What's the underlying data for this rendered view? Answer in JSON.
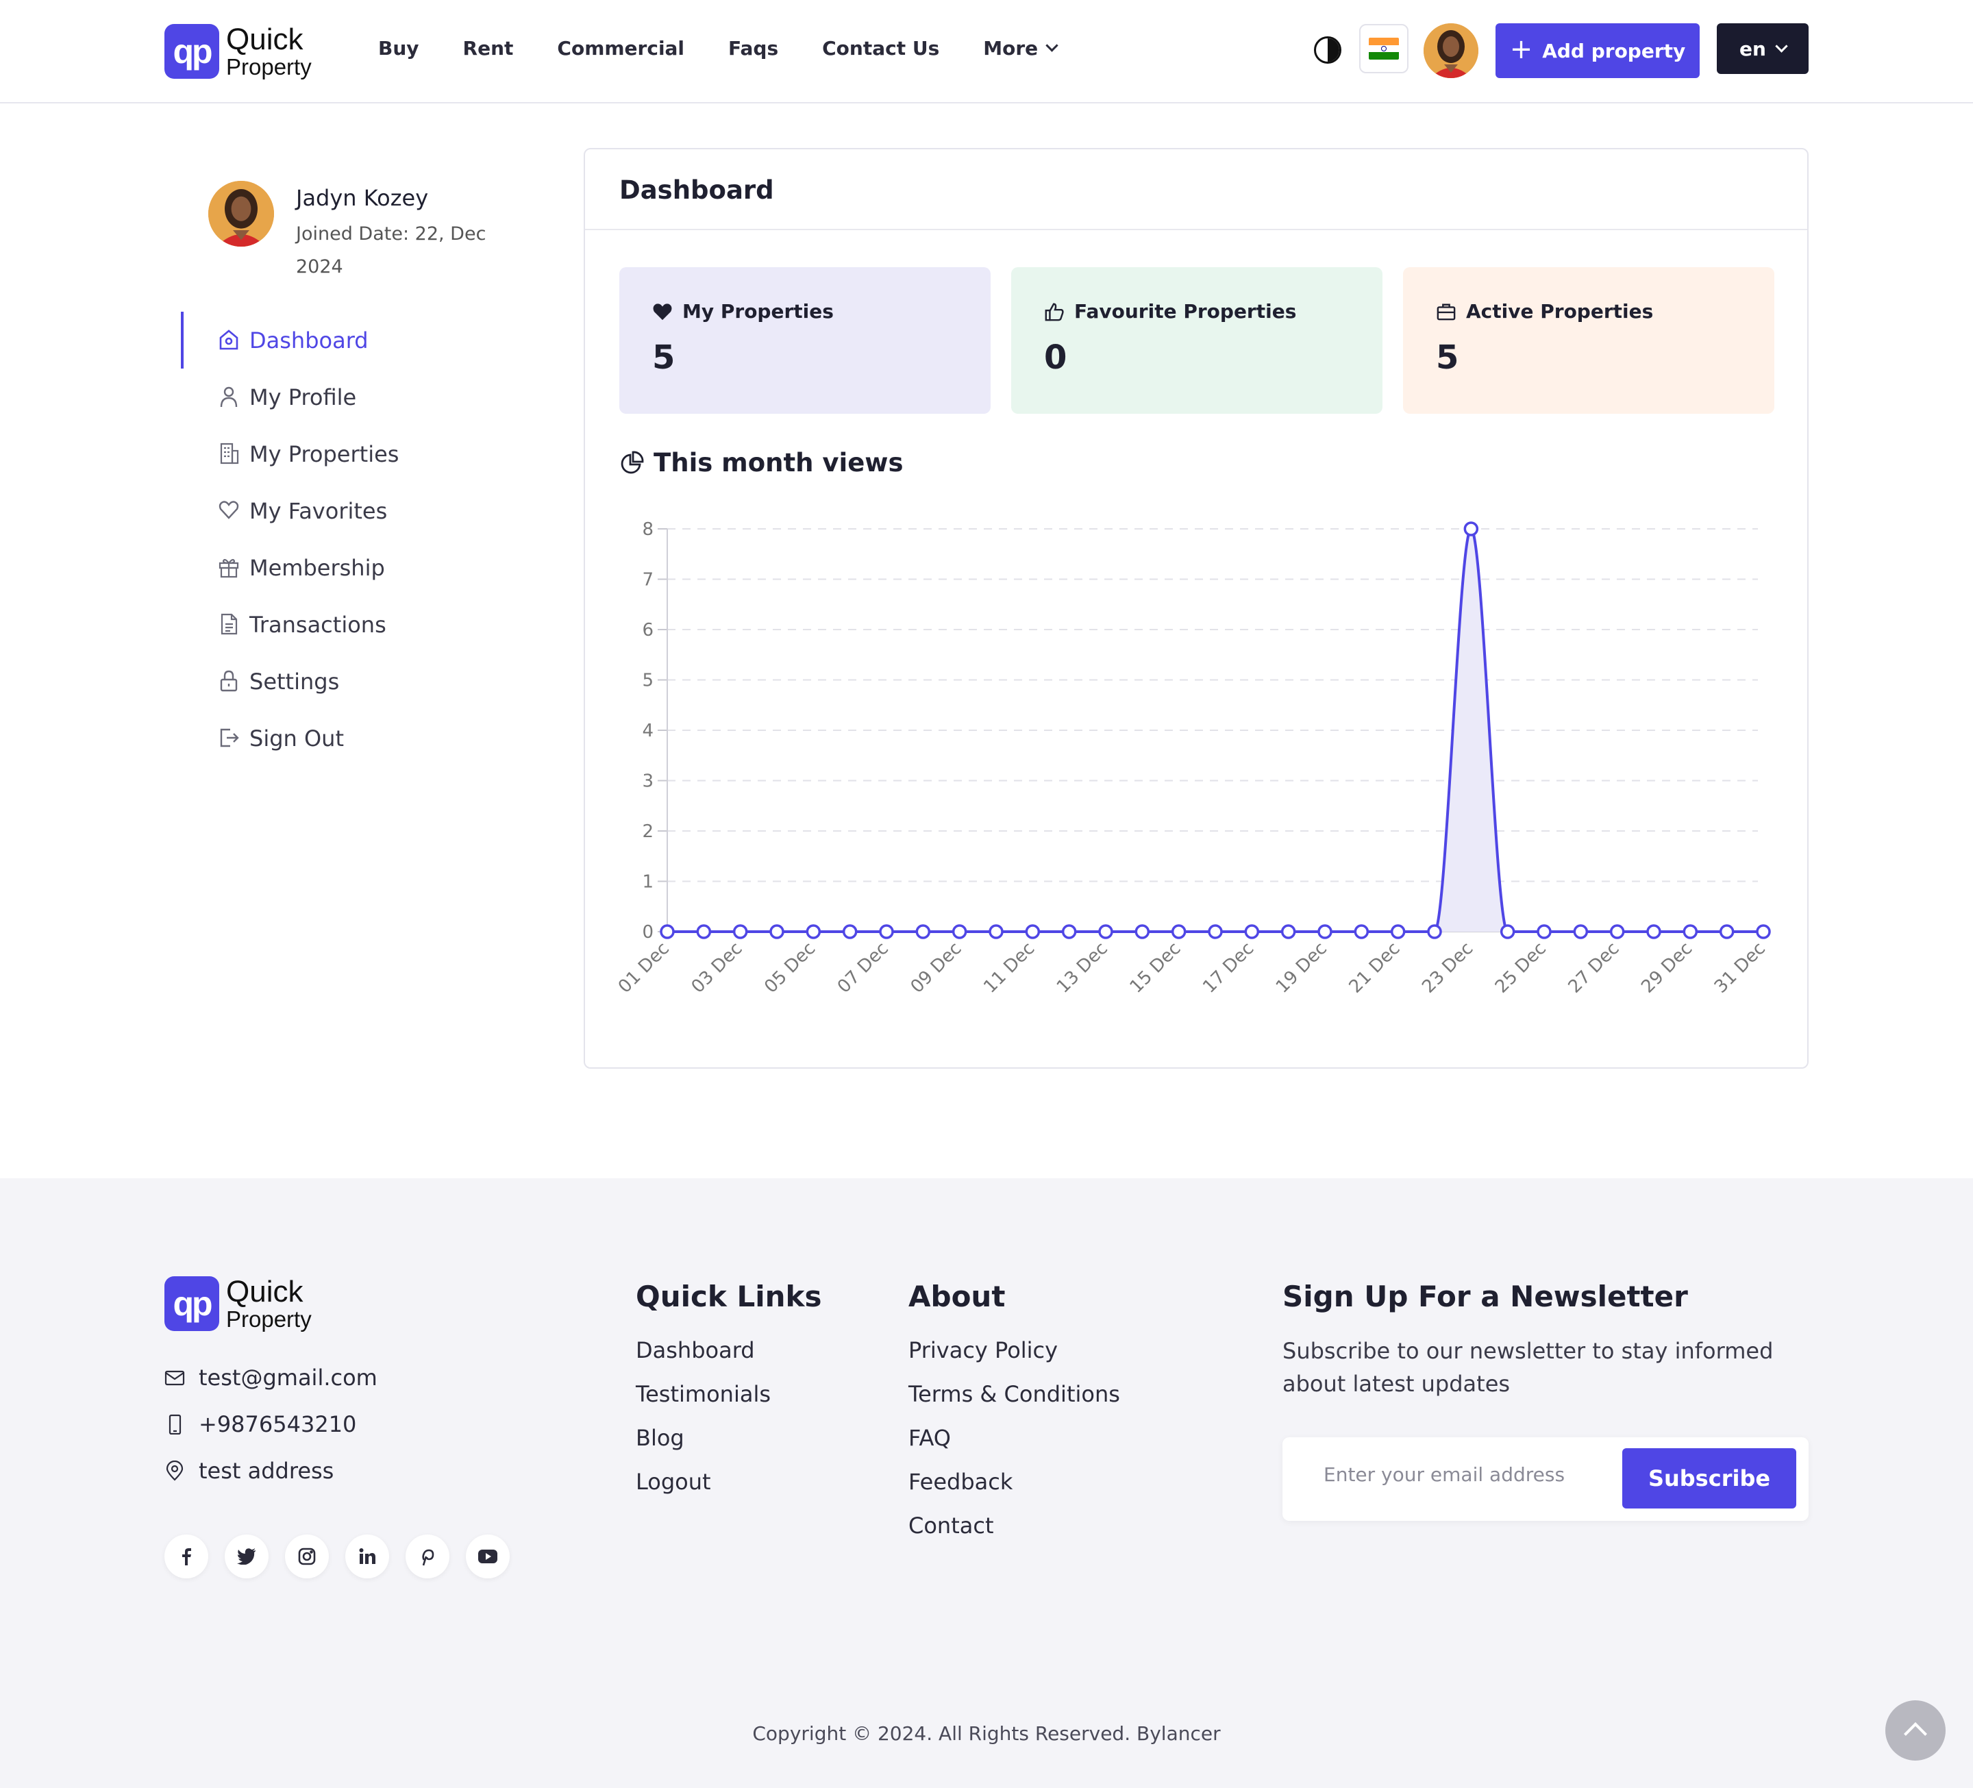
{
  "header": {
    "logo": {
      "line1": "Quick",
      "line2": "Property",
      "mark": "qp"
    },
    "nav": [
      "Buy",
      "Rent",
      "Commercial",
      "Faqs",
      "Contact Us",
      "More"
    ],
    "add_property_label": "Add property",
    "language": "en",
    "icons": {
      "theme": "half-circle-theme-icon",
      "flag": "india-flag-icon",
      "more": "chevron-down-icon"
    }
  },
  "profile": {
    "name": "Jadyn Kozey",
    "joined": "Joined Date: 22, Dec 2024"
  },
  "sidebar": {
    "items": [
      {
        "label": "Dashboard",
        "icon": "home-icon",
        "active": true
      },
      {
        "label": "My Profile",
        "icon": "user-icon"
      },
      {
        "label": "My Properties",
        "icon": "building-icon"
      },
      {
        "label": "My Favorites",
        "icon": "heart-icon"
      },
      {
        "label": "Membership",
        "icon": "gift-icon"
      },
      {
        "label": "Transactions",
        "icon": "document-icon"
      },
      {
        "label": "Settings",
        "icon": "lock-icon"
      },
      {
        "label": "Sign Out",
        "icon": "sign-out-icon"
      }
    ]
  },
  "dashboard": {
    "title": "Dashboard",
    "stats": [
      {
        "label": "My Properties",
        "value": "5",
        "icon": "heart-icon",
        "color": "#ebeaf9"
      },
      {
        "label": "Favourite Properties",
        "value": "0",
        "icon": "thumbs-up-icon",
        "color": "#e8f6ee"
      },
      {
        "label": "Active Properties",
        "value": "5",
        "icon": "briefcase-icon",
        "color": "#fff2e9"
      }
    ],
    "views_title": "This month views"
  },
  "chart_data": {
    "type": "area",
    "title": "This month views",
    "x": [
      "01 Dec",
      "02 Dec",
      "03 Dec",
      "04 Dec",
      "05 Dec",
      "06 Dec",
      "07 Dec",
      "08 Dec",
      "09 Dec",
      "10 Dec",
      "11 Dec",
      "12 Dec",
      "13 Dec",
      "14 Dec",
      "15 Dec",
      "16 Dec",
      "17 Dec",
      "18 Dec",
      "19 Dec",
      "20 Dec",
      "21 Dec",
      "22 Dec",
      "23 Dec",
      "24 Dec",
      "25 Dec",
      "26 Dec",
      "27 Dec",
      "28 Dec",
      "29 Dec",
      "30 Dec",
      "31 Dec"
    ],
    "x_tick_labels": [
      "01 Dec",
      "03 Dec",
      "05 Dec",
      "07 Dec",
      "09 Dec",
      "11 Dec",
      "13 Dec",
      "15 Dec",
      "17 Dec",
      "19 Dec",
      "21 Dec",
      "23 Dec",
      "25 Dec",
      "27 Dec",
      "29 Dec",
      "31 Dec"
    ],
    "values": [
      0,
      0,
      0,
      0,
      0,
      0,
      0,
      0,
      0,
      0,
      0,
      0,
      0,
      0,
      0,
      0,
      0,
      0,
      0,
      0,
      0,
      0,
      8,
      0,
      0,
      0,
      0,
      0,
      0,
      0,
      0
    ],
    "y_ticks": [
      0,
      1,
      2,
      3,
      4,
      5,
      6,
      7,
      8
    ],
    "ylim": [
      0,
      8
    ],
    "grid": true,
    "line_color": "#4f46e5",
    "fill_color": "#ebeaf9"
  },
  "footer": {
    "logo": {
      "line1": "Quick",
      "line2": "Property",
      "mark": "qp"
    },
    "email": "test@gmail.com",
    "phone": "+9876543210",
    "address": "test address",
    "socials": [
      "facebook-icon",
      "twitter-icon",
      "instagram-icon",
      "linkedin-icon",
      "pinterest-icon",
      "youtube-icon"
    ],
    "quick_links": {
      "title": "Quick Links",
      "items": [
        "Dashboard",
        "Testimonials",
        "Blog",
        "Logout"
      ]
    },
    "about": {
      "title": "About",
      "items": [
        "Privacy Policy",
        "Terms & Conditions",
        "FAQ",
        "Feedback",
        "Contact"
      ]
    },
    "newsletter": {
      "title": "Sign Up For a Newsletter",
      "description": "Subscribe to our newsletter to stay informed about latest updates",
      "placeholder": "Enter your email address",
      "button": "Subscribe"
    },
    "copyright": "Copyright © 2024. All Rights Reserved. Bylancer"
  },
  "colors": {
    "accent": "#4f46e5",
    "dark": "#1a1b2e",
    "footer_bg": "#f4f4f8"
  }
}
